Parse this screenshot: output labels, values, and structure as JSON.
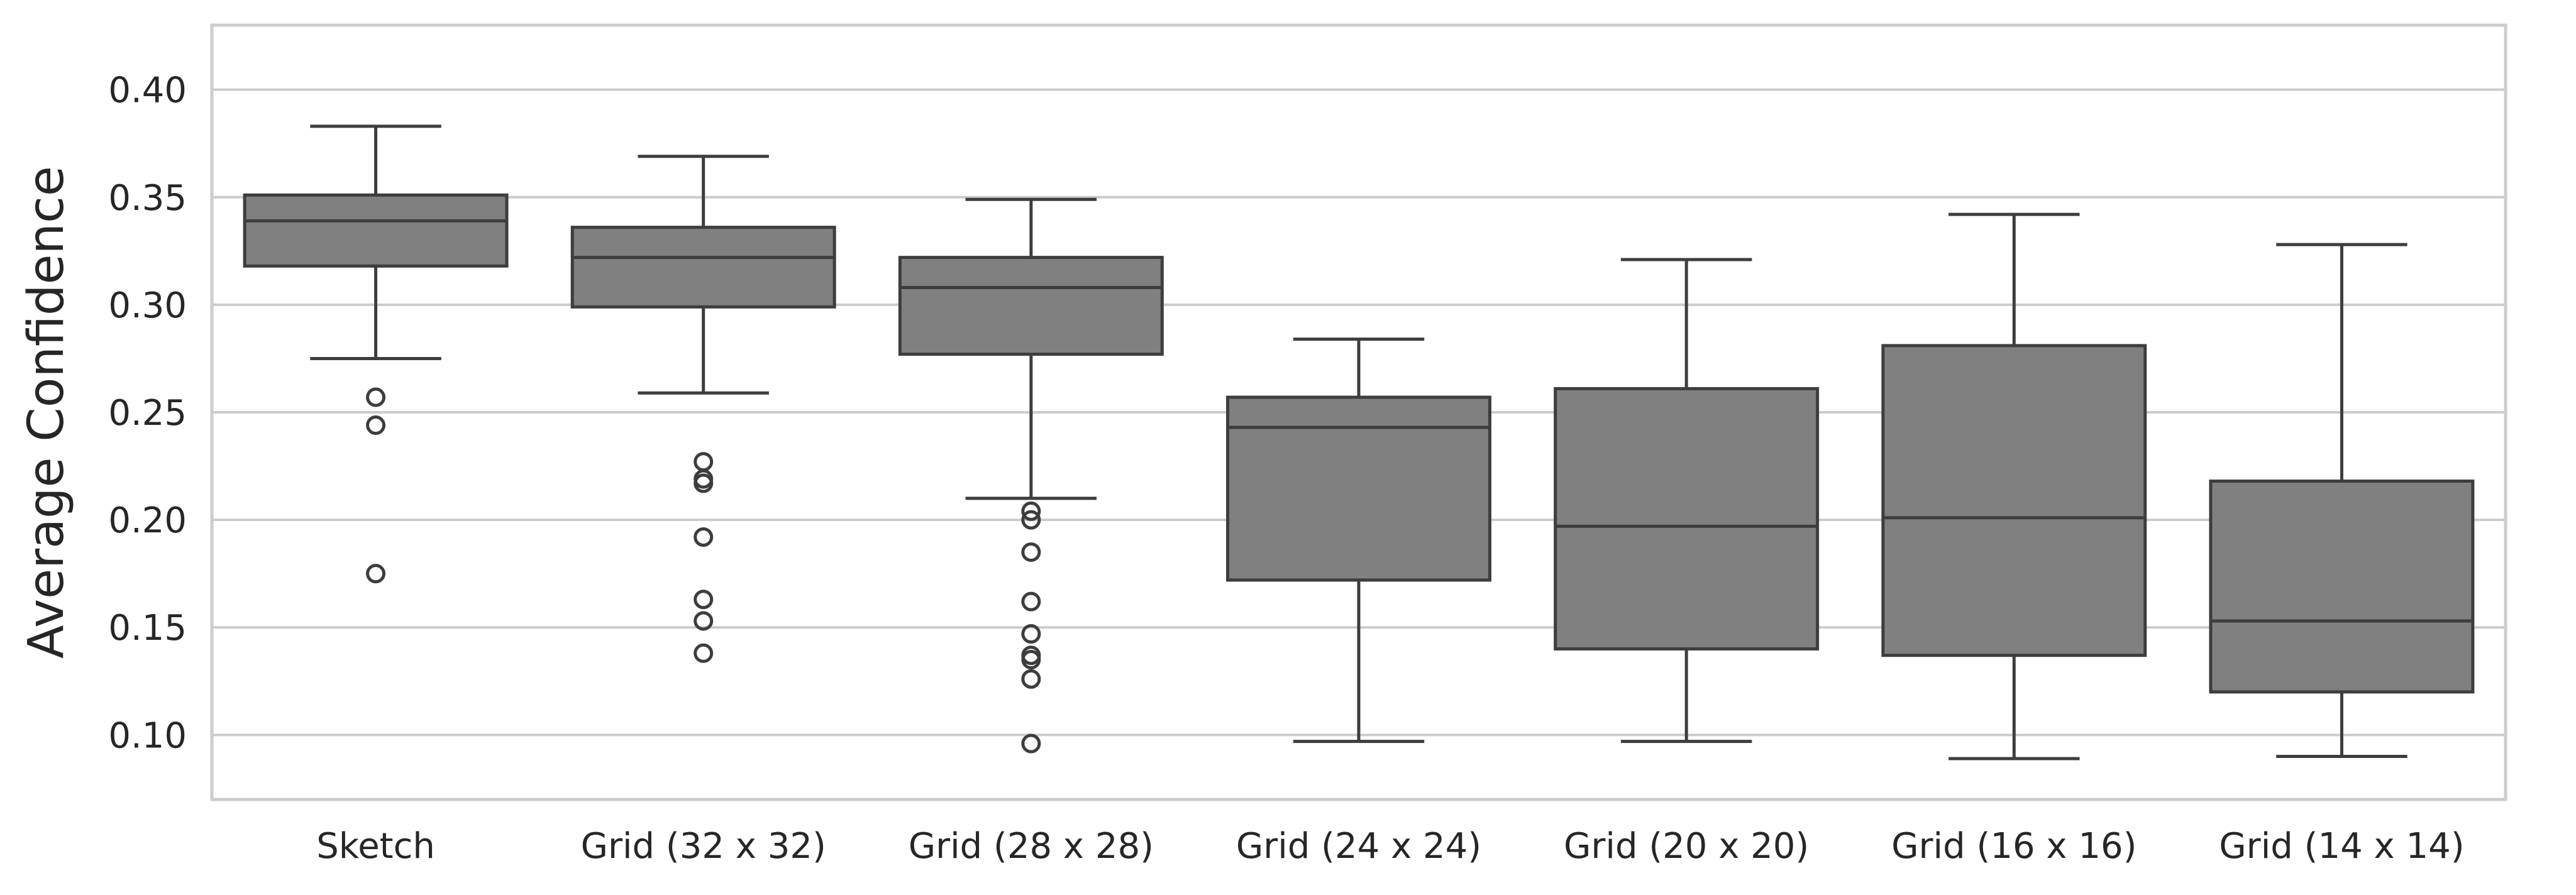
{
  "chart_data": {
    "type": "box",
    "title": "",
    "xlabel": "",
    "ylabel": "Average Confidence",
    "ylim": [
      0.07,
      0.43
    ],
    "yticks": [
      0.1,
      0.15,
      0.2,
      0.25,
      0.3,
      0.35,
      0.4
    ],
    "ytick_labels": [
      "0.10",
      "0.15",
      "0.20",
      "0.25",
      "0.30",
      "0.35",
      "0.40"
    ],
    "grid": "horizontal",
    "box_color": "#808080",
    "line_color": "#3d3d3d",
    "categories": [
      "Sketch",
      "Grid (32 x 32)",
      "Grid (28 x 28)",
      "Grid (24 x 24)",
      "Grid (20 x 20)",
      "Grid (16 x 16)",
      "Grid (14 x 14)"
    ],
    "boxes": [
      {
        "whisker_low": 0.275,
        "q1": 0.318,
        "median": 0.339,
        "q3": 0.351,
        "whisker_high": 0.383,
        "outliers": [
          0.257,
          0.244,
          0.175
        ]
      },
      {
        "whisker_low": 0.259,
        "q1": 0.299,
        "median": 0.322,
        "q3": 0.336,
        "whisker_high": 0.369,
        "outliers": [
          0.227,
          0.219,
          0.217,
          0.192,
          0.163,
          0.153,
          0.138
        ]
      },
      {
        "whisker_low": 0.21,
        "q1": 0.277,
        "median": 0.308,
        "q3": 0.322,
        "whisker_high": 0.349,
        "outliers": [
          0.204,
          0.2,
          0.185,
          0.162,
          0.147,
          0.137,
          0.135,
          0.126,
          0.096
        ]
      },
      {
        "whisker_low": 0.097,
        "q1": 0.172,
        "median": 0.243,
        "q3": 0.257,
        "whisker_high": 0.284,
        "outliers": []
      },
      {
        "whisker_low": 0.097,
        "q1": 0.14,
        "median": 0.197,
        "q3": 0.261,
        "whisker_high": 0.321,
        "outliers": []
      },
      {
        "whisker_low": 0.089,
        "q1": 0.137,
        "median": 0.201,
        "q3": 0.281,
        "whisker_high": 0.342,
        "outliers": []
      },
      {
        "whisker_low": 0.09,
        "q1": 0.12,
        "median": 0.153,
        "q3": 0.218,
        "whisker_high": 0.328,
        "outliers": []
      }
    ]
  }
}
